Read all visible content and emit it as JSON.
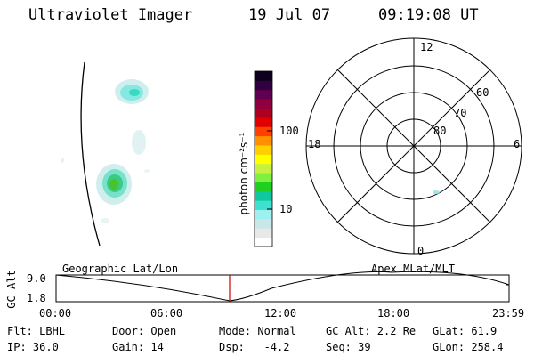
{
  "header": {
    "instrument": "Ultraviolet Imager",
    "date": "19 Jul 07",
    "time": "09:19:08 UT"
  },
  "colorbar": {
    "unit_label": "photon cm⁻²s⁻¹",
    "ticks": [
      "100",
      "10"
    ],
    "colors": [
      "#ffffff",
      "#e8e8e8",
      "#c8e8e8",
      "#9ef0f0",
      "#40e0d0",
      "#10c8a0",
      "#20d020",
      "#80f040",
      "#c8f040",
      "#ffff00",
      "#ffd000",
      "#ff9000",
      "#ff4000",
      "#e00000",
      "#b00020",
      "#900040",
      "#600050",
      "#300040",
      "#100020"
    ]
  },
  "polar_grid": {
    "mlt_labels": {
      "top": "12",
      "right": "6",
      "bottom": "0",
      "left": "18"
    },
    "mlat_labels": [
      "60",
      "70",
      "80"
    ]
  },
  "timeline": {
    "left_label": "Geographic Lat/Lon",
    "right_label": "Apex MLat/MLT",
    "axis_title": "GC Alt",
    "y_ticks": [
      "9.0",
      "1.8"
    ],
    "x_ticks": [
      "00:00",
      "06:00",
      "12:00",
      "18:00",
      "23:59"
    ],
    "marker_color": "#cc0000"
  },
  "info": {
    "row1": {
      "filter": "Flt: LBHL",
      "door": "Door: Open",
      "mode": "Mode: Normal",
      "gc_alt": "GC Alt: 2.2 Re",
      "glat": "GLat: 61.9"
    },
    "row2": {
      "ip": "IP: 36.0",
      "gain": "Gain: 14",
      "dsp": "Dsp:   -4.2",
      "seq": "Seq: 39",
      "glon": "GLon: 258.4"
    }
  }
}
